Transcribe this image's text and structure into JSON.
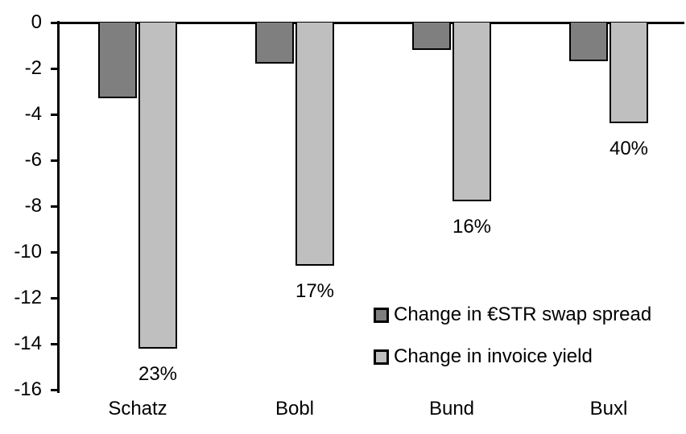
{
  "chart_data": {
    "type": "bar",
    "title": "",
    "xlabel": "",
    "ylabel": "",
    "categories": [
      "Schatz",
      "Bobl",
      "Bund",
      "Buxl"
    ],
    "series": [
      {
        "name": "Change in €STR swap spread",
        "color": "#7f7f7f",
        "values": [
          -3.3,
          -1.8,
          -1.2,
          -1.7
        ]
      },
      {
        "name": "Change in invoice yield",
        "color": "#bfbfbf",
        "values": [
          -14.2,
          -10.6,
          -7.8,
          -4.4
        ]
      }
    ],
    "bar_labels": {
      "attached_to_series": "Change in invoice yield",
      "values": [
        "23%",
        "17%",
        "16%",
        "40%"
      ]
    },
    "ylim": [
      -16,
      0
    ],
    "yticks": [
      0,
      -2,
      -4,
      -6,
      -8,
      -10,
      -12,
      -14,
      -16
    ],
    "grid": false,
    "legend_position": "inside-right-middle",
    "bar_border_color": "#000000",
    "axis_color": "#000000",
    "background": "#ffffff"
  }
}
